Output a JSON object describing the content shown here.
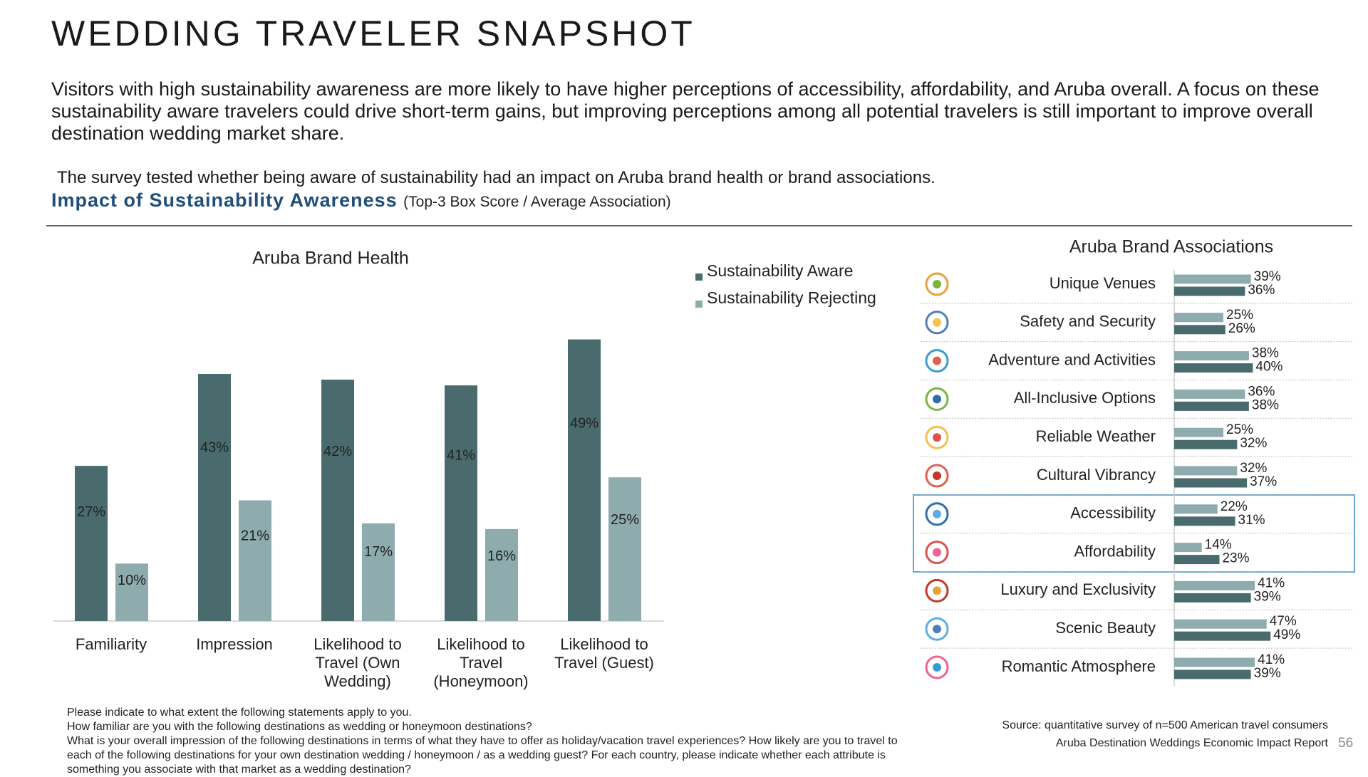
{
  "title": "WEDDING TRAVELER SNAPSHOT",
  "intro": "Visitors with high sustainability awareness are more likely to have higher perceptions of accessibility, affordability, and Aruba overall. A focus on these sustainability aware travelers could drive short-term gains, but improving perceptions among all potential travelers is still important to improve overall destination wedding market share.",
  "note": "The survey tested whether being aware of sustainability had an impact on Aruba brand health or brand associations.",
  "subtitle": {
    "main": "Impact of Sustainability Awareness",
    "detail": "(Top-3 Box Score / Average Association)"
  },
  "chart_data": [
    {
      "type": "bar",
      "title": "Aruba Brand Health",
      "categories": [
        "Familiarity",
        "Impression",
        "Likelihood to Travel (Own Wedding)",
        "Likelihood to Travel (Honeymoon)",
        "Likelihood to Travel (Guest)"
      ],
      "series": [
        {
          "name": "Sustainability Aware",
          "color": "#4a6b6d",
          "values": [
            27,
            43,
            42,
            41,
            49
          ],
          "value_labels": [
            "27%",
            "43%",
            "42%",
            "41%",
            "49%"
          ]
        },
        {
          "name": "Sustainability Rejecting",
          "color": "#8eabad",
          "values": [
            10,
            21,
            17,
            16,
            25
          ],
          "value_labels": [
            "10%",
            "21%",
            "17%",
            "16%",
            "25%"
          ]
        }
      ]
    },
    {
      "type": "barh",
      "title": "Aruba Brand Associations",
      "categories": [
        "Unique Venues",
        "Safety and Security",
        "Adventure and Activities",
        "All-Inclusive Options",
        "Reliable Weather",
        "Cultural Vibrancy",
        "Accessibility",
        "Affordability",
        "Luxury and Exclusivity",
        "Scenic Beauty",
        "Romantic Atmosphere"
      ],
      "series": [
        {
          "color": "#8eabad",
          "values": [
            39,
            25,
            38,
            36,
            25,
            32,
            22,
            14,
            41,
            47,
            41
          ],
          "value_labels": [
            "39%",
            "25%",
            "38%",
            "36%",
            "25%",
            "32%",
            "22%",
            "14%",
            "41%",
            "47%",
            "41%"
          ]
        },
        {
          "color": "#4a6b6d",
          "values": [
            36,
            26,
            40,
            38,
            32,
            37,
            31,
            23,
            39,
            49,
            39
          ],
          "value_labels": [
            "36%",
            "26%",
            "40%",
            "38%",
            "32%",
            "37%",
            "31%",
            "23%",
            "39%",
            "49%",
            "39%"
          ]
        }
      ]
    }
  ],
  "footnotes": [
    "Please indicate to what extent the following statements apply to you.",
    "How familiar are you with the following destinations as wedding or honeymoon destinations?",
    "What is your overall impression of the following destinations in terms of what they have to offer as holiday/vacation travel experiences? How likely are you to travel to each of the following destinations for your own destination wedding / honeymoon / as a wedding guest? For each country, please indicate whether each attribute is something you associate with that market as a wedding destination?"
  ],
  "source": "Source: quantitative survey of n=500 American travel consumers",
  "report": "Aruba Destination Weddings Economic Impact Report",
  "page": "56"
}
